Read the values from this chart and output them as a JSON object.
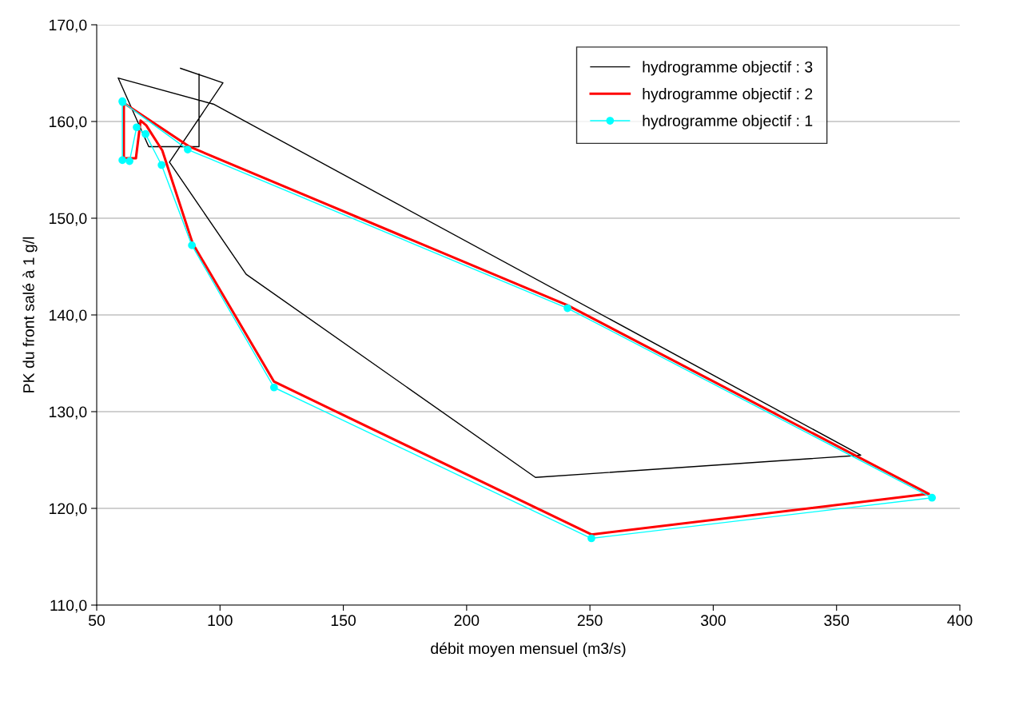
{
  "chart_data": {
    "type": "line",
    "xlabel": "débit moyen mensuel (m3/s)",
    "ylabel": "PK du front salé à 1 g/l",
    "xlim": [
      50,
      400
    ],
    "xticks": [
      50,
      100,
      150,
      200,
      250,
      300,
      350,
      400
    ],
    "ylim": [
      110,
      170
    ],
    "yticks": [
      {
        "value": 110,
        "label": "110,0"
      },
      {
        "value": 120,
        "label": "120,0"
      },
      {
        "value": 130,
        "label": "130,0"
      },
      {
        "value": 140,
        "label": "140,0"
      },
      {
        "value": 150,
        "label": "150,0"
      },
      {
        "value": 160,
        "label": "160,0"
      },
      {
        "value": 170,
        "label": "170,0"
      }
    ],
    "grid": "y",
    "legend": "top right",
    "series": [
      {
        "name": "hydrogramme objectif : 3",
        "color": "#000000",
        "marker": "none",
        "x": [
          84.0,
          101.2,
          79.5,
          110.6,
          227.9,
          359.8,
          97.3,
          58.7,
          71.1,
          91.5,
          91.5
        ],
        "values": [
          165.5,
          164.0,
          155.8,
          144.2,
          123.2,
          125.5,
          161.8,
          164.5,
          157.4,
          157.4,
          164.9
        ]
      },
      {
        "name": "hydrogramme objectif : 2",
        "color": "#ff0000",
        "marker": "none",
        "x": [
          61.0,
          61.0,
          65.9,
          67.8,
          70.1,
          76.6,
          88.9,
          121.9,
          250.6,
          387.4,
          240.9,
          87.6,
          61.1
        ],
        "values": [
          162.0,
          156.2,
          156.2,
          160.1,
          159.6,
          157.0,
          147.4,
          133.1,
          117.3,
          121.5,
          141.0,
          157.4,
          161.9
        ]
      },
      {
        "name": "hydrogramme objectif : 1",
        "color": "#00ffff",
        "marker": "circle",
        "x": [
          60.4,
          60.4,
          63.3,
          66.2,
          69.8,
          76.3,
          88.6,
          121.9,
          250.6,
          388.7,
          240.9,
          86.9,
          60.5
        ],
        "values": [
          162.1,
          156.0,
          155.9,
          159.4,
          158.7,
          155.5,
          147.2,
          132.5,
          116.9,
          121.1,
          140.7,
          157.1,
          162.0
        ]
      }
    ]
  }
}
